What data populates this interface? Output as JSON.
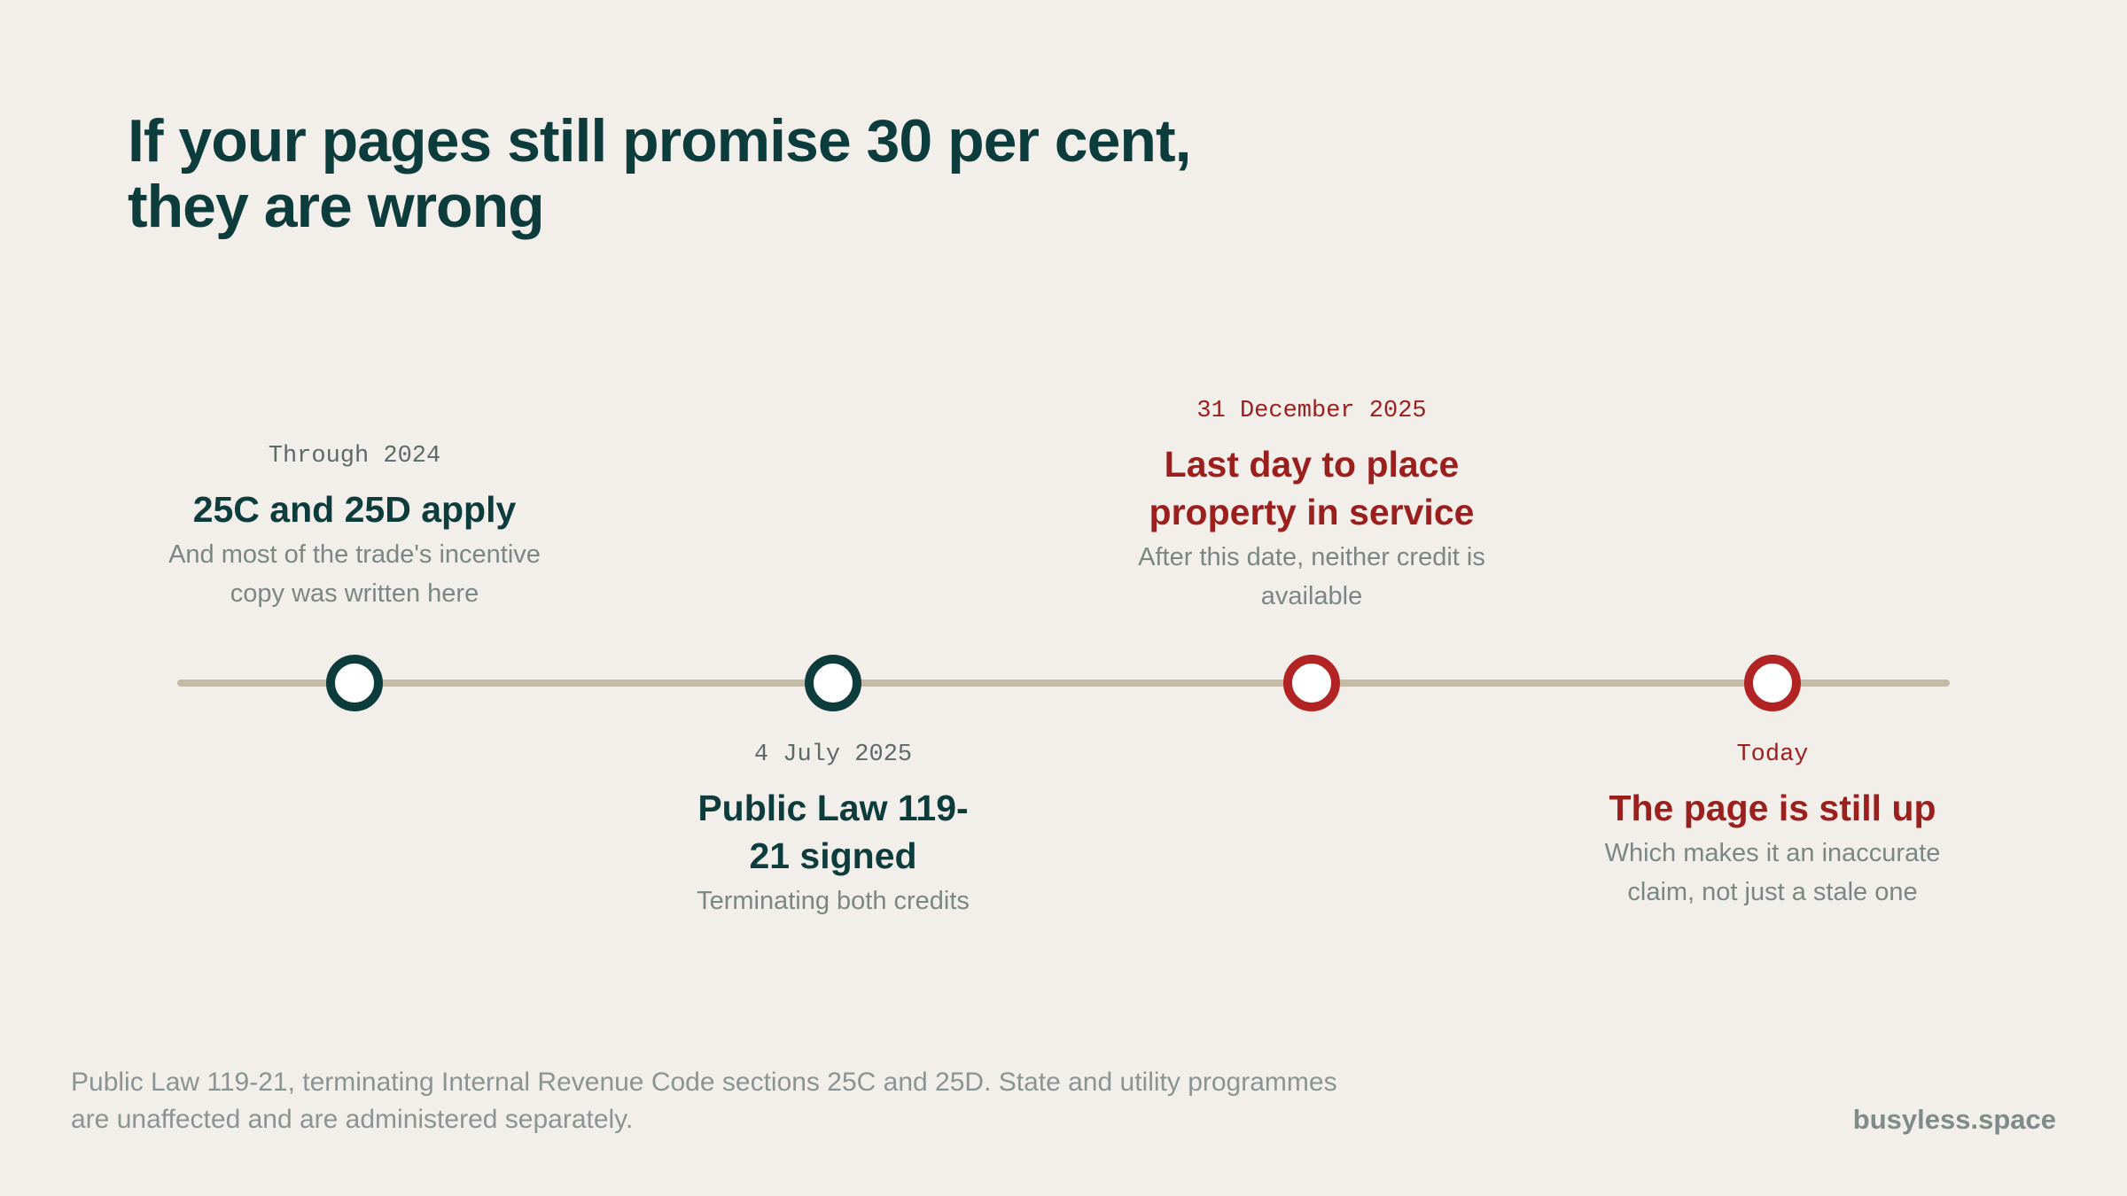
{
  "title": {
    "line1": "If your pages still promise 30 per cent,",
    "line2": "they are wrong"
  },
  "colors": {
    "background": "#f2eee9",
    "primary": "#0d3c3c",
    "accent_red": "#9b1f1d",
    "track": "#c4baa6",
    "muted_text": "#7b8785"
  },
  "timeline": {
    "events": [
      {
        "date": "Through 2024",
        "heading": "25C and 25D apply",
        "description": "And most of the trade's incentive copy was written here",
        "color": "#0d3c3c",
        "label_position": "above"
      },
      {
        "date": "4 July 2025",
        "heading": "Public Law 119-21 signed",
        "description": "Terminating both credits",
        "color": "#0d3c3c",
        "label_position": "below"
      },
      {
        "date": "31 December 2025",
        "heading": "Last day to place property in service",
        "description": "After this date, neither credit is available",
        "color": "#9b1f1d",
        "label_position": "above"
      },
      {
        "date": "Today",
        "heading": "The page is still up",
        "description": "Which makes it an inaccurate claim, not just a stale one",
        "color": "#9b1f1d",
        "label_position": "below"
      }
    ]
  },
  "footnote": "Public Law 119-21, terminating Internal Revenue Code sections 25C and 25D. State and utility programmes are unaffected and are administered separately.",
  "brand": "busyless.space"
}
